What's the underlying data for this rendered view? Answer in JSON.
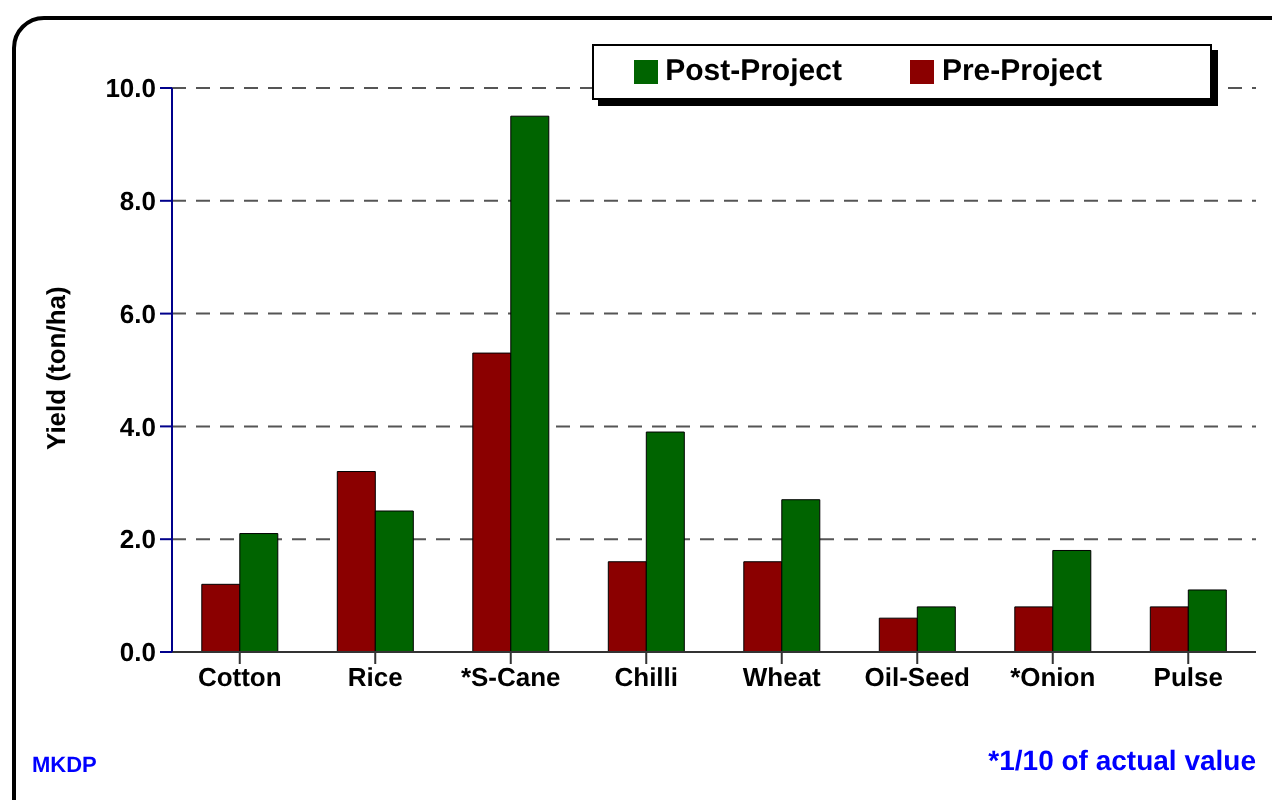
{
  "chart_data": {
    "type": "bar",
    "ylabel": "Yield (ton/ha)",
    "categories": [
      "Cotton",
      "Rice",
      "*S-Cane",
      "Chilli",
      "Wheat",
      "Oil-Seed",
      "*Onion",
      "Pulse"
    ],
    "series": [
      {
        "name": "Pre-Project",
        "color": "#8b0000",
        "values": [
          1.2,
          3.2,
          5.3,
          1.6,
          1.6,
          0.6,
          0.8,
          0.8
        ]
      },
      {
        "name": "Post-Project",
        "color": "#006400",
        "values": [
          2.1,
          2.5,
          9.5,
          3.9,
          2.7,
          0.8,
          1.8,
          1.1
        ]
      }
    ],
    "ylim": [
      0,
      10
    ],
    "yticks": [
      {
        "value": 0,
        "label": "0.0"
      },
      {
        "value": 2,
        "label": "2.0"
      },
      {
        "value": 4,
        "label": "4.0"
      },
      {
        "value": 6,
        "label": "6.0"
      },
      {
        "value": 8,
        "label": "8.0"
      },
      {
        "value": 10,
        "label": "10.0"
      }
    ],
    "grid": "y",
    "legend": "top right",
    "annotations": [
      "MKDP",
      "*1/10 of actual value"
    ]
  }
}
